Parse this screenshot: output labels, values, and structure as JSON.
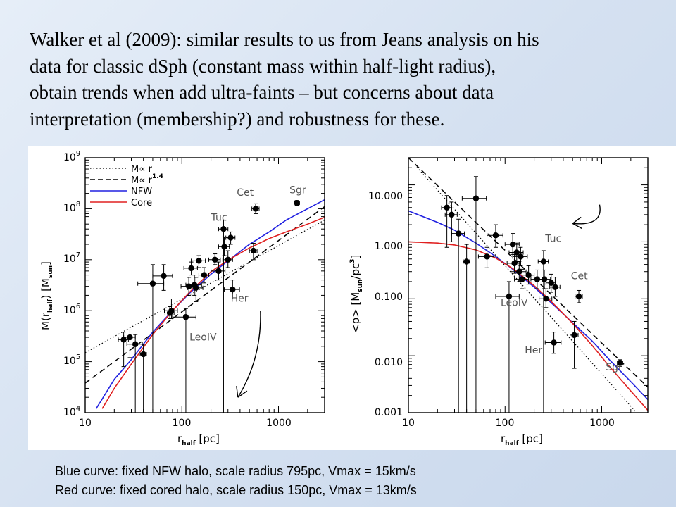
{
  "heading": [
    "Walker et al (2009): similar results to us from Jeans analysis on his",
    "data for classic dSph (constant mass within half-light radius),",
    "obtain trends when add ultra-faints – but concerns about data",
    "interpretation (membership?) and robustness for these."
  ],
  "captions": [
    "Blue curve: fixed NFW halo, scale radius 795pc, Vmax = 15km/s",
    "Red curve: fixed cored halo, scale radius 150pc, Vmax = 13km/s"
  ],
  "colors": {
    "nfw": "#2020e0",
    "core": "#e02020",
    "ink": "#000000",
    "annotation": "#555555"
  },
  "chart_data": [
    {
      "type": "scatter",
      "xscale": "log",
      "yscale": "log",
      "xlim": [
        10,
        3000
      ],
      "ylim": [
        10000,
        1000000000
      ],
      "xlabel": "r_half [pc]",
      "ylabel": "M(r_half) [M_sun]",
      "xticklabels": [
        "10",
        "100",
        "1000"
      ],
      "yticklabels": [
        "10^4",
        "10^5",
        "10^6",
        "10^7",
        "10^8",
        "10^9"
      ],
      "legend": {
        "position": "top-left",
        "entries": [
          {
            "label": "M∝ r",
            "style": "dotted"
          },
          {
            "label": "M∝ r^1.4",
            "style": "dashed"
          },
          {
            "label": "NFW",
            "style": "blue"
          },
          {
            "label": "Core",
            "style": "red"
          }
        ]
      },
      "annotations": [
        {
          "text": "Cet",
          "x": 370,
          "y": 180000000
        },
        {
          "text": "Sgr",
          "x": 1300,
          "y": 200000000
        },
        {
          "text": "Tuc",
          "x": 200,
          "y": 58000000
        },
        {
          "text": "Her",
          "x": 320,
          "y": 1500000
        },
        {
          "text": "LeoIV",
          "x": 120,
          "y": 260000
        }
      ],
      "arrow": {
        "from": [
          650,
          1000000
        ],
        "to": [
          380,
          20000
        ]
      },
      "curves": [
        {
          "style": "dotted",
          "x": [
            10,
            3000
          ],
          "y": [
            150000,
            60000000
          ]
        },
        {
          "style": "dashed",
          "x": [
            10,
            3000
          ],
          "y": [
            38000,
            110000000
          ]
        },
        {
          "style": "nfw",
          "x": [
            13,
            20,
            30,
            50,
            80,
            120,
            200,
            300,
            500,
            800,
            1200,
            2000,
            3000
          ],
          "y": [
            12000,
            45000,
            110000,
            380000,
            1000000,
            2200000,
            5200000,
            9500000,
            20000000,
            35000000,
            60000000,
            100000000,
            150000000
          ]
        },
        {
          "style": "core",
          "x": [
            15,
            20,
            30,
            50,
            80,
            120,
            200,
            300,
            500,
            800,
            1200,
            2000,
            3000
          ],
          "y": [
            12000,
            30000,
            90000,
            340000,
            1000000,
            2300000,
            5800000,
            9800000,
            17000000,
            26000000,
            35000000,
            50000000,
            68000000
          ]
        }
      ],
      "points": [
        {
          "x": 25,
          "y": 270000,
          "xerr": 3,
          "ylo": 80000,
          "yhi": 380000
        },
        {
          "x": 29,
          "y": 300000,
          "xerr": 4,
          "ylo": 120000,
          "yhi": 420000
        },
        {
          "x": 33,
          "y": 220000,
          "xerr": 6,
          "ylo": 10000,
          "yhi": 340000
        },
        {
          "x": 40,
          "y": 140000,
          "xerr": 3,
          "ylo": 10000,
          "yhi": 220000
        },
        {
          "x": 50,
          "y": 3400000,
          "xerr": 15,
          "ylo": 10000,
          "yhi": 8000000
        },
        {
          "x": 65,
          "y": 4800000,
          "xerr": 15,
          "ylo": 2500000,
          "yhi": 8000000
        },
        {
          "x": 75,
          "y": 900000,
          "xerr": 8,
          "ylo": 700000,
          "yhi": 1200000
        },
        {
          "x": 78,
          "y": 1000000,
          "xerr": 12,
          "ylo": 700000,
          "yhi": 1700000
        },
        {
          "x": 110,
          "y": 750000,
          "xerr": 30,
          "ylo": 10000,
          "yhi": 1100000
        },
        {
          "x": 118,
          "y": 3000000,
          "xerr": 20,
          "ylo": 2000000,
          "yhi": 4500000
        },
        {
          "x": 125,
          "y": 6800000,
          "xerr": 20,
          "ylo": 5000000,
          "yhi": 9000000
        },
        {
          "x": 135,
          "y": 3200000,
          "xerr": 25,
          "ylo": 2000000,
          "yhi": 5000000
        },
        {
          "x": 140,
          "y": 2800000,
          "xerr": 25,
          "ylo": 1500000,
          "yhi": 4500000
        },
        {
          "x": 150,
          "y": 9500000,
          "xerr": 25,
          "ylo": 7000000,
          "yhi": 12000000
        },
        {
          "x": 170,
          "y": 5000000,
          "xerr": 20,
          "ylo": 3500000,
          "yhi": 7000000
        },
        {
          "x": 220,
          "y": 10000000,
          "xerr": 30,
          "ylo": 8000000,
          "yhi": 13000000
        },
        {
          "x": 240,
          "y": 6000000,
          "xerr": 40,
          "ylo": 4000000,
          "yhi": 9000000
        },
        {
          "x": 270,
          "y": 40000000,
          "xerr": 30,
          "ylo": 10000,
          "yhi": 60000000
        },
        {
          "x": 275,
          "y": 18000000,
          "xerr": 35,
          "ylo": 12000000,
          "yhi": 28000000
        },
        {
          "x": 300,
          "y": 10000000,
          "xerr": 35,
          "ylo": 7000000,
          "yhi": 15000000
        },
        {
          "x": 320,
          "y": 27000000,
          "xerr": 35,
          "ylo": 20000000,
          "yhi": 35000000
        },
        {
          "x": 335,
          "y": 2600000,
          "xerr": 60,
          "ylo": 1700000,
          "yhi": 4000000
        },
        {
          "x": 550,
          "y": 15000000,
          "xerr": 50,
          "ylo": 10000000,
          "yhi": 21000000
        },
        {
          "x": 580,
          "y": 100000000,
          "xerr": 50,
          "ylo": 80000000,
          "yhi": 125000000
        },
        {
          "x": 1550,
          "y": 130000000,
          "xerr": 100,
          "ylo": 115000000,
          "yhi": 145000000
        }
      ]
    },
    {
      "type": "scatter",
      "xscale": "log",
      "yscale": "log",
      "xlim": [
        10,
        3000
      ],
      "ylim": [
        0.001,
        30
      ],
      "xlabel": "r_half [pc]",
      "ylabel": "<ρ> [M_sun/pc^3]",
      "xticklabels": [
        "10",
        "100",
        "1000"
      ],
      "yticklabels": [
        "0.001",
        "0.010",
        "0.100",
        "1.000",
        "10.000"
      ],
      "annotations": [
        {
          "text": "Tuc",
          "x": 260,
          "y": 1.0
        },
        {
          "text": "Cet",
          "x": 480,
          "y": 0.22
        },
        {
          "text": "LeoIV",
          "x": 90,
          "y": 0.075
        },
        {
          "text": "Her",
          "x": 160,
          "y": 0.011
        },
        {
          "text": "Sgr",
          "x": 1100,
          "y": 0.0055
        }
      ],
      "arrow": {
        "from": [
          950,
          4.5
        ],
        "to": [
          500,
          2.1
        ]
      },
      "curves": [
        {
          "style": "dotted",
          "x": [
            10,
            3000
          ],
          "y": [
            30,
            0.0006
          ]
        },
        {
          "style": "dashed",
          "x": [
            10,
            3000
          ],
          "y": [
            30,
            0.0028
          ]
        },
        {
          "style": "nfw",
          "x": [
            10,
            20,
            30,
            50,
            80,
            120,
            200,
            300,
            500,
            800,
            1200,
            2000,
            3000
          ],
          "y": [
            3.5,
            2.2,
            1.6,
            0.95,
            0.55,
            0.33,
            0.16,
            0.085,
            0.038,
            0.018,
            0.0085,
            0.0035,
            0.0017
          ]
        },
        {
          "style": "core",
          "x": [
            10,
            20,
            30,
            50,
            80,
            120,
            200,
            300,
            500,
            800,
            1200,
            2000,
            3000
          ],
          "y": [
            1.0,
            0.95,
            0.88,
            0.72,
            0.52,
            0.34,
            0.17,
            0.09,
            0.037,
            0.015,
            0.0065,
            0.0024,
            0.0011
          ]
        }
      ],
      "points": [
        {
          "x": 25,
          "y": 4.0,
          "xerr": 3,
          "ylo": 0.8,
          "yhi": 6.5
        },
        {
          "x": 28,
          "y": 3.0,
          "xerr": 4,
          "ylo": 1.0,
          "yhi": 5.0
        },
        {
          "x": 33,
          "y": 1.4,
          "xerr": 5,
          "ylo": 0.001,
          "yhi": 2.5
        },
        {
          "x": 40,
          "y": 0.45,
          "xerr": 3,
          "ylo": 0.001,
          "yhi": 0.9
        },
        {
          "x": 50,
          "y": 5.8,
          "xerr": 14,
          "ylo": 0.001,
          "yhi": 14
        },
        {
          "x": 65,
          "y": 0.55,
          "xerr": 12,
          "ylo": 0.35,
          "yhi": 0.8
        },
        {
          "x": 80,
          "y": 1.3,
          "xerr": 15,
          "ylo": 0.8,
          "yhi": 2.0
        },
        {
          "x": 110,
          "y": 0.11,
          "xerr": 30,
          "ylo": 0.001,
          "yhi": 0.2
        },
        {
          "x": 120,
          "y": 0.9,
          "xerr": 20,
          "ylo": 0.6,
          "yhi": 1.4
        },
        {
          "x": 125,
          "y": 0.42,
          "xerr": 20,
          "ylo": 0.28,
          "yhi": 0.6
        },
        {
          "x": 132,
          "y": 0.65,
          "xerr": 22,
          "ylo": 0.45,
          "yhi": 0.95
        },
        {
          "x": 140,
          "y": 0.3,
          "xerr": 25,
          "ylo": 0.2,
          "yhi": 0.45
        },
        {
          "x": 145,
          "y": 0.55,
          "xerr": 25,
          "ylo": 0.38,
          "yhi": 0.8
        },
        {
          "x": 150,
          "y": 0.22,
          "xerr": 25,
          "ylo": 0.15,
          "yhi": 0.33
        },
        {
          "x": 175,
          "y": 0.26,
          "xerr": 25,
          "ylo": 0.18,
          "yhi": 0.38
        },
        {
          "x": 215,
          "y": 0.22,
          "xerr": 30,
          "ylo": 0.15,
          "yhi": 0.32
        },
        {
          "x": 250,
          "y": 0.45,
          "xerr": 30,
          "ylo": 0.001,
          "yhi": 0.7
        },
        {
          "x": 255,
          "y": 0.22,
          "xerr": 40,
          "ylo": 0.15,
          "yhi": 0.32
        },
        {
          "x": 265,
          "y": 0.1,
          "xerr": 40,
          "ylo": 0.07,
          "yhi": 0.15
        },
        {
          "x": 300,
          "y": 0.19,
          "xerr": 35,
          "ylo": 0.13,
          "yhi": 0.27
        },
        {
          "x": 320,
          "y": 0.017,
          "xerr": 60,
          "ylo": 0.011,
          "yhi": 0.026
        },
        {
          "x": 330,
          "y": 0.16,
          "xerr": 40,
          "ylo": 0.11,
          "yhi": 0.24
        },
        {
          "x": 520,
          "y": 0.023,
          "xerr": 50,
          "ylo": 0.006,
          "yhi": 0.04
        },
        {
          "x": 580,
          "y": 0.11,
          "xerr": 50,
          "ylo": 0.085,
          "yhi": 0.14
        },
        {
          "x": 1550,
          "y": 0.0075,
          "xerr": 100,
          "ylo": 0.0065,
          "yhi": 0.0085
        }
      ]
    }
  ]
}
